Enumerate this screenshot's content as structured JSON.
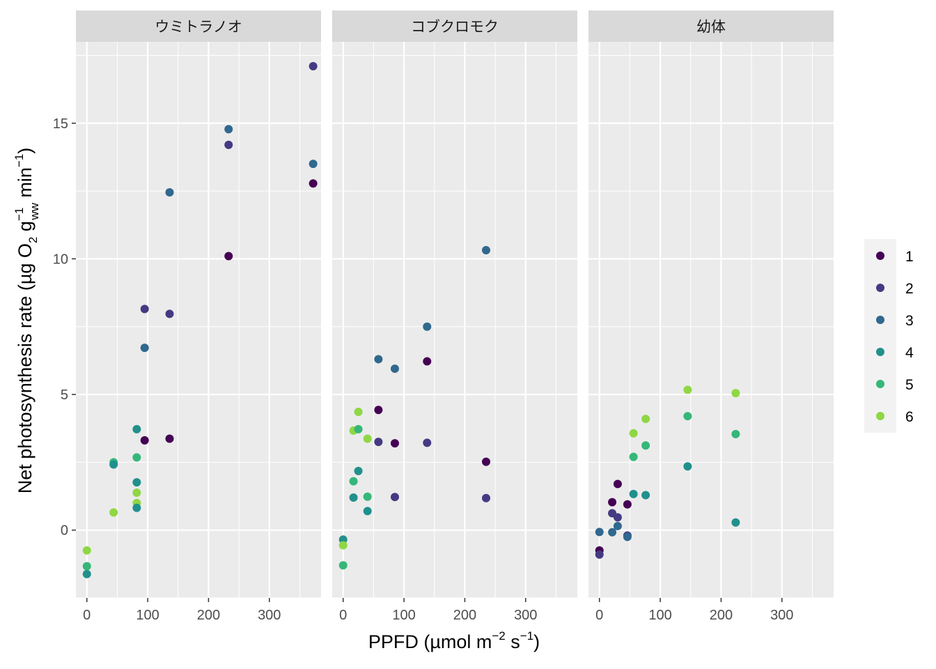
{
  "chart_data": {
    "type": "scatter",
    "facets": [
      {
        "strip": "ウミトラノオ",
        "points": [
          {
            "x": 0,
            "y": -0.75,
            "group": "6"
          },
          {
            "x": 0,
            "y": -1.33,
            "group": "5"
          },
          {
            "x": 0,
            "y": -1.62,
            "group": "4"
          },
          {
            "x": 44,
            "y": 2.5,
            "group": "5"
          },
          {
            "x": 44,
            "y": 2.42,
            "group": "4"
          },
          {
            "x": 44,
            "y": 0.65,
            "group": "6"
          },
          {
            "x": 82,
            "y": 3.72,
            "group": "4"
          },
          {
            "x": 82,
            "y": 2.68,
            "group": "5"
          },
          {
            "x": 82,
            "y": 1.76,
            "group": "4"
          },
          {
            "x": 82,
            "y": 1.38,
            "group": "6"
          },
          {
            "x": 82,
            "y": 1.0,
            "group": "6"
          },
          {
            "x": 82,
            "y": 0.82,
            "group": "4"
          },
          {
            "x": 95,
            "y": 8.15,
            "group": "2"
          },
          {
            "x": 95,
            "y": 6.72,
            "group": "3"
          },
          {
            "x": 95,
            "y": 3.31,
            "group": "1"
          },
          {
            "x": 136,
            "y": 12.45,
            "group": "3"
          },
          {
            "x": 136,
            "y": 7.97,
            "group": "2"
          },
          {
            "x": 136,
            "y": 3.37,
            "group": "1"
          },
          {
            "x": 233,
            "y": 14.78,
            "group": "3"
          },
          {
            "x": 233,
            "y": 14.2,
            "group": "2"
          },
          {
            "x": 233,
            "y": 10.1,
            "group": "1"
          },
          {
            "x": 372,
            "y": 17.1,
            "group": "2"
          },
          {
            "x": 372,
            "y": 13.5,
            "group": "3"
          },
          {
            "x": 372,
            "y": 12.78,
            "group": "1"
          }
        ]
      },
      {
        "strip": "コブクロモク",
        "points": [
          {
            "x": 0,
            "y": -0.35,
            "group": "4"
          },
          {
            "x": 0,
            "y": -0.56,
            "group": "6"
          },
          {
            "x": 0,
            "y": -1.3,
            "group": "5"
          },
          {
            "x": 17,
            "y": 3.67,
            "group": "6"
          },
          {
            "x": 17,
            "y": 1.8,
            "group": "5"
          },
          {
            "x": 17,
            "y": 1.2,
            "group": "4"
          },
          {
            "x": 25,
            "y": 4.36,
            "group": "6"
          },
          {
            "x": 25,
            "y": 3.72,
            "group": "5"
          },
          {
            "x": 25,
            "y": 2.18,
            "group": "4"
          },
          {
            "x": 40,
            "y": 3.37,
            "group": "6"
          },
          {
            "x": 40,
            "y": 1.23,
            "group": "5"
          },
          {
            "x": 40,
            "y": 0.7,
            "group": "4"
          },
          {
            "x": 58,
            "y": 6.3,
            "group": "3"
          },
          {
            "x": 58,
            "y": 4.43,
            "group": "1"
          },
          {
            "x": 58,
            "y": 3.25,
            "group": "2"
          },
          {
            "x": 85,
            "y": 5.95,
            "group": "3"
          },
          {
            "x": 85,
            "y": 3.2,
            "group": "1"
          },
          {
            "x": 85,
            "y": 1.22,
            "group": "2"
          },
          {
            "x": 138,
            "y": 7.5,
            "group": "3"
          },
          {
            "x": 138,
            "y": 6.22,
            "group": "1"
          },
          {
            "x": 138,
            "y": 3.22,
            "group": "2"
          },
          {
            "x": 235,
            "y": 10.32,
            "group": "3"
          },
          {
            "x": 235,
            "y": 2.52,
            "group": "1"
          },
          {
            "x": 235,
            "y": 1.18,
            "group": "2"
          }
        ]
      },
      {
        "strip": "幼体",
        "points": [
          {
            "x": 0,
            "y": -0.07,
            "group": "3"
          },
          {
            "x": 0,
            "y": -0.75,
            "group": "1"
          },
          {
            "x": 0,
            "y": -0.9,
            "group": "2"
          },
          {
            "x": 21,
            "y": 1.03,
            "group": "1"
          },
          {
            "x": 21,
            "y": 0.62,
            "group": "2"
          },
          {
            "x": 21,
            "y": -0.08,
            "group": "3"
          },
          {
            "x": 30,
            "y": 1.7,
            "group": "1"
          },
          {
            "x": 30,
            "y": 0.47,
            "group": "2"
          },
          {
            "x": 30,
            "y": 0.15,
            "group": "3"
          },
          {
            "x": 46,
            "y": 0.95,
            "group": "1"
          },
          {
            "x": 46,
            "y": -0.2,
            "group": "2"
          },
          {
            "x": 46,
            "y": -0.25,
            "group": "3"
          },
          {
            "x": 56,
            "y": 3.57,
            "group": "6"
          },
          {
            "x": 56,
            "y": 2.7,
            "group": "5"
          },
          {
            "x": 56,
            "y": 1.33,
            "group": "4"
          },
          {
            "x": 76,
            "y": 4.1,
            "group": "6"
          },
          {
            "x": 76,
            "y": 3.12,
            "group": "5"
          },
          {
            "x": 76,
            "y": 1.29,
            "group": "4"
          },
          {
            "x": 145,
            "y": 5.17,
            "group": "6"
          },
          {
            "x": 145,
            "y": 4.2,
            "group": "5"
          },
          {
            "x": 145,
            "y": 2.35,
            "group": "4"
          },
          {
            "x": 224,
            "y": 5.05,
            "group": "6"
          },
          {
            "x": 224,
            "y": 3.54,
            "group": "5"
          },
          {
            "x": 224,
            "y": 0.28,
            "group": "4"
          }
        ]
      }
    ],
    "xlabel": "PPFD (µmol m⁻² s⁻¹)",
    "xlabel_parts": {
      "main": "PPFD (µmol m",
      "exp1": "−2",
      "mid": " s",
      "exp2": "−1",
      "close": ")"
    },
    "ylabel": "Net photosynthesis rate (µg O₂ g_ww⁻¹ min⁻¹)",
    "ylabel_parts": {
      "main": "Net photosynthesis rate (µg O",
      "sub1": "2",
      "g": " g",
      "sup_g": "−1",
      "sub_g": "ww",
      "min": " min",
      "sup_min": "−1",
      "close": ")"
    },
    "xlim": [
      -18,
      385
    ],
    "ylim": [
      -2.5,
      18.0
    ],
    "x_ticks": [
      0,
      100,
      200,
      300
    ],
    "x_tick_labels": [
      "0",
      "100",
      "200",
      "300"
    ],
    "y_ticks": [
      0,
      5,
      10,
      15
    ],
    "y_tick_labels": [
      "0",
      "5",
      "10",
      "15"
    ],
    "legend": {
      "placement": "right",
      "entries": [
        {
          "label": "1",
          "color": "#440154"
        },
        {
          "label": "2",
          "color": "#443A83"
        },
        {
          "label": "3",
          "color": "#31688E"
        },
        {
          "label": "4",
          "color": "#21908C"
        },
        {
          "label": "5",
          "color": "#35B779"
        },
        {
          "label": "6",
          "color": "#8FD744"
        }
      ]
    },
    "grid": true,
    "panel_background": "#EBEBEB",
    "strip_background": "#D9D9D9"
  }
}
